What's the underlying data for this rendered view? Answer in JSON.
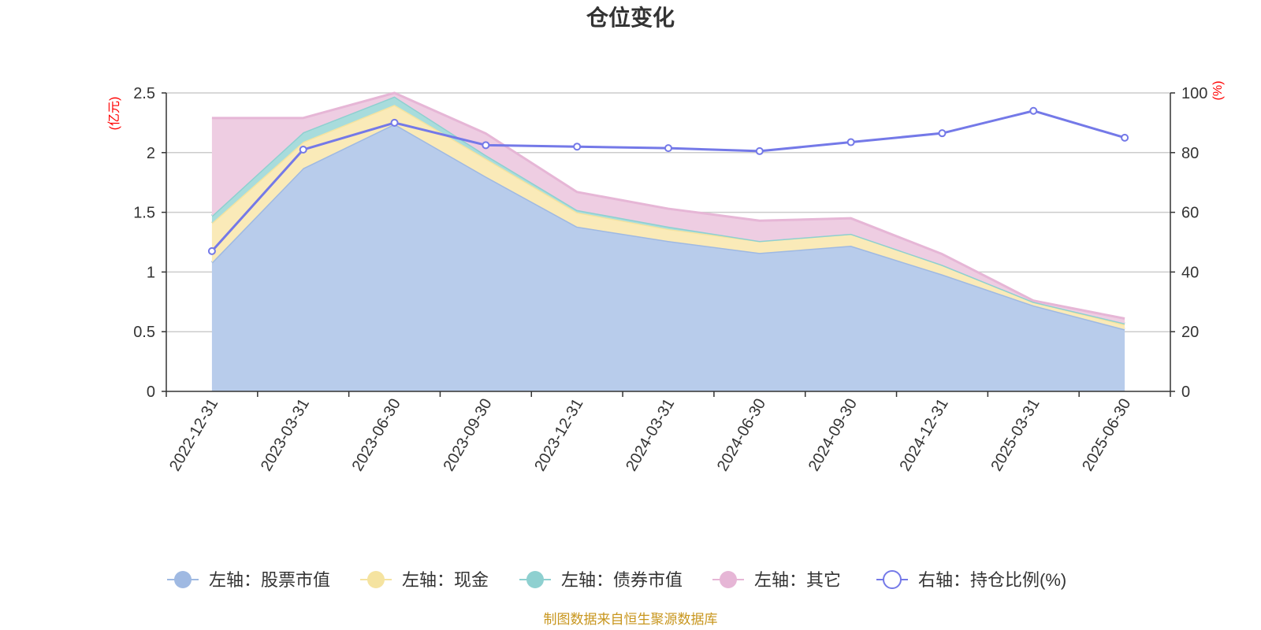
{
  "chart_data": {
    "type": "area",
    "title": "仓位变化",
    "left_axis_unit": "(亿元)",
    "right_axis_unit": "(%)",
    "categories": [
      "2022-12-31",
      "2023-03-31",
      "2023-06-30",
      "2023-09-30",
      "2023-12-31",
      "2024-03-31",
      "2024-06-30",
      "2024-09-30",
      "2024-12-31",
      "2025-03-31",
      "2025-06-30"
    ],
    "left_ylim": [
      0,
      2.5
    ],
    "left_ticks": [
      "0",
      "0.5",
      "1",
      "1.5",
      "2",
      "2.5"
    ],
    "right_ylim": [
      0,
      100
    ],
    "right_ticks": [
      "0",
      "20",
      "40",
      "60",
      "80",
      "100"
    ],
    "stacked": true,
    "series": [
      {
        "name": "左轴：股票市值",
        "axis": "left",
        "type": "area",
        "color": "#9fb9e2",
        "fill": "#b8cceb",
        "values": [
          1.08,
          1.87,
          2.24,
          1.8,
          1.38,
          1.26,
          1.16,
          1.22,
          0.98,
          0.72,
          0.52
        ]
      },
      {
        "name": "左轴：现金",
        "axis": "left",
        "type": "area",
        "color": "#f5e3a0",
        "fill": "#faeab8",
        "values": [
          0.33,
          0.22,
          0.16,
          0.15,
          0.12,
          0.1,
          0.1,
          0.1,
          0.08,
          0.03,
          0.04
        ]
      },
      {
        "name": "左轴：债券市值",
        "axis": "left",
        "type": "area",
        "color": "#8ed0d0",
        "fill": "#a8dcdc",
        "values": [
          0.06,
          0.08,
          0.07,
          0.03,
          0.02,
          0.02,
          0,
          0,
          0,
          0,
          0.01
        ]
      },
      {
        "name": "左轴：其它",
        "axis": "left",
        "type": "area",
        "color": "#e6b6d6",
        "fill": "#eecde2",
        "values": [
          0.82,
          0.12,
          0.03,
          0.18,
          0.15,
          0.15,
          0.17,
          0.13,
          0.09,
          0.01,
          0.04
        ]
      },
      {
        "name": "右轴：持仓比例(%)",
        "axis": "right",
        "type": "line",
        "color": "#7479e8",
        "values": [
          47,
          81,
          90,
          82.5,
          82,
          81.5,
          80.5,
          83.5,
          86.5,
          94,
          85
        ]
      }
    ],
    "grid": true,
    "legend_position": "bottom"
  },
  "footer": {
    "source_text": "制图数据来自恒生聚源数据库",
    "source_color": "#c8961e"
  },
  "colors": {
    "axis_unit": "#ff0000",
    "axis_line": "#333333",
    "grid_line": "#cccccc"
  }
}
